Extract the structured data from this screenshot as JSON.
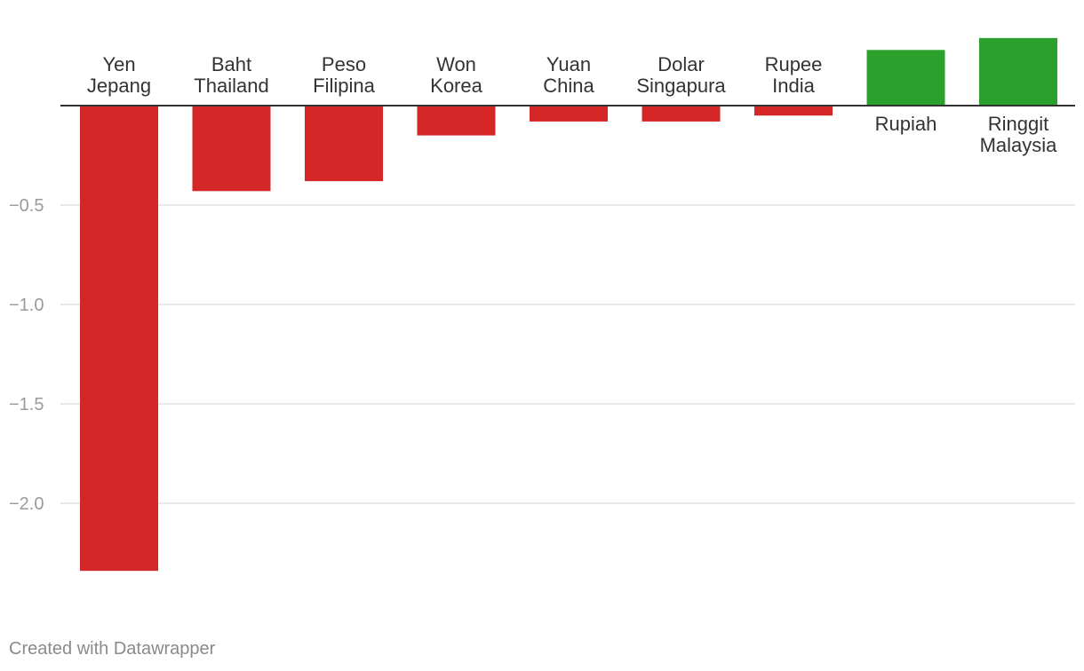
{
  "chart_data": {
    "type": "bar",
    "title": "",
    "xlabel": "",
    "ylabel": "",
    "categories": [
      [
        "Yen",
        "Jepang"
      ],
      [
        "Baht",
        "Thailand"
      ],
      [
        "Peso",
        "Filipina"
      ],
      [
        "Won",
        "Korea"
      ],
      [
        "Yuan",
        "China"
      ],
      [
        "Dolar",
        "Singapura"
      ],
      [
        "Rupee",
        "India"
      ],
      [
        "Rupiah"
      ],
      [
        "Ringgit",
        "Malaysia"
      ]
    ],
    "values": [
      -2.34,
      -0.43,
      -0.38,
      -0.15,
      -0.08,
      -0.08,
      -0.05,
      0.28,
      0.34
    ],
    "ylim": [
      -2.34,
      0.34
    ],
    "yticks": [
      -0.5,
      -1.0,
      -1.5,
      -2.0
    ],
    "ytick_labels": [
      "−0.5",
      "−1.0",
      "−1.5",
      "−2.0"
    ],
    "colors": {
      "negative": "#d62728",
      "positive": "#2ca02c"
    },
    "grid": true
  },
  "credit": "Created with Datawrapper"
}
